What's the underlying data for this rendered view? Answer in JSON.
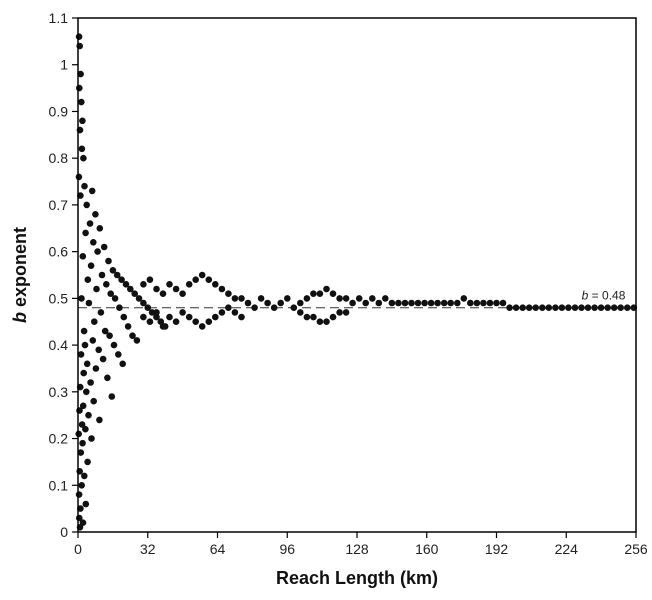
{
  "chart_data": {
    "type": "scatter",
    "title": "",
    "xlabel": "Reach Length (km)",
    "ylabel_bold_italic": "b",
    "ylabel_rest": " exponent",
    "xlim": [
      0,
      256
    ],
    "ylim": [
      0,
      1.1
    ],
    "xticks": [
      0,
      32,
      64,
      96,
      128,
      160,
      192,
      224,
      256
    ],
    "yticks": [
      0,
      0.1,
      0.2,
      0.3,
      0.4,
      0.5,
      0.6,
      0.7,
      0.8,
      0.9,
      1,
      1.1
    ],
    "ytick_labels": [
      "0",
      "0.1",
      "0.2",
      "0.3",
      "0.4",
      "0.5",
      "0.6",
      "0.7",
      "0.8",
      "0.9",
      "1",
      "1.1"
    ],
    "grid": false,
    "legend": "none",
    "colors": {
      "points": "#111111",
      "reference_line": "#333333",
      "axes": "#000000"
    },
    "reference_line": {
      "y": 0.48,
      "style": "dashed"
    },
    "annotation": {
      "label_italic": "b",
      "label_rest": " = 0.48",
      "x": 243,
      "y": 0.48
    },
    "series": [
      {
        "points": [
          [
            0.5,
            1.06
          ],
          [
            0.8,
            1.04
          ],
          [
            1.2,
            0.98
          ],
          [
            0.6,
            0.95
          ],
          [
            1.5,
            0.92
          ],
          [
            2.0,
            0.88
          ],
          [
            0.9,
            0.86
          ],
          [
            1.8,
            0.82
          ],
          [
            2.5,
            0.8
          ],
          [
            0.4,
            0.76
          ],
          [
            3.0,
            0.74
          ],
          [
            1.1,
            0.72
          ],
          [
            6.5,
            0.73
          ],
          [
            4.0,
            0.7
          ],
          [
            8.0,
            0.68
          ],
          [
            5.5,
            0.66
          ],
          [
            10.0,
            0.65
          ],
          [
            3.5,
            0.64
          ],
          [
            7.0,
            0.62
          ],
          [
            12.0,
            0.61
          ],
          [
            9.0,
            0.6
          ],
          [
            2.2,
            0.59
          ],
          [
            14.0,
            0.58
          ],
          [
            6.0,
            0.57
          ],
          [
            16.0,
            0.56
          ],
          [
            11.0,
            0.55
          ],
          [
            18.0,
            0.55
          ],
          [
            4.5,
            0.54
          ],
          [
            20.0,
            0.54
          ],
          [
            13.0,
            0.53
          ],
          [
            22.0,
            0.53
          ],
          [
            8.5,
            0.52
          ],
          [
            24.0,
            0.52
          ],
          [
            15.0,
            0.51
          ],
          [
            26.0,
            0.51
          ],
          [
            1.6,
            0.5
          ],
          [
            28.0,
            0.5
          ],
          [
            17.0,
            0.5
          ],
          [
            30.0,
            0.49
          ],
          [
            5.0,
            0.49
          ],
          [
            32.0,
            0.48
          ],
          [
            19.0,
            0.48
          ],
          [
            34.0,
            0.47
          ],
          [
            10.5,
            0.47
          ],
          [
            36.0,
            0.46
          ],
          [
            21.0,
            0.46
          ],
          [
            38.0,
            0.45
          ],
          [
            7.5,
            0.45
          ],
          [
            40.0,
            0.44
          ],
          [
            23.0,
            0.44
          ],
          [
            12.5,
            0.43
          ],
          [
            2.8,
            0.43
          ],
          [
            25.0,
            0.42
          ],
          [
            14.5,
            0.42
          ],
          [
            6.8,
            0.41
          ],
          [
            27.0,
            0.41
          ],
          [
            3.2,
            0.4
          ],
          [
            16.5,
            0.4
          ],
          [
            9.5,
            0.39
          ],
          [
            18.5,
            0.38
          ],
          [
            1.4,
            0.38
          ],
          [
            11.5,
            0.37
          ],
          [
            4.2,
            0.36
          ],
          [
            20.5,
            0.36
          ],
          [
            8.2,
            0.35
          ],
          [
            2.6,
            0.34
          ],
          [
            13.5,
            0.33
          ],
          [
            5.8,
            0.32
          ],
          [
            1.0,
            0.31
          ],
          [
            3.8,
            0.3
          ],
          [
            15.5,
            0.29
          ],
          [
            7.2,
            0.28
          ],
          [
            2.4,
            0.27
          ],
          [
            0.7,
            0.26
          ],
          [
            4.8,
            0.25
          ],
          [
            9.8,
            0.24
          ],
          [
            1.9,
            0.23
          ],
          [
            3.4,
            0.22
          ],
          [
            0.3,
            0.21
          ],
          [
            6.2,
            0.2
          ],
          [
            2.1,
            0.19
          ],
          [
            1.3,
            0.17
          ],
          [
            4.4,
            0.15
          ],
          [
            0.8,
            0.13
          ],
          [
            2.9,
            0.12
          ],
          [
            1.7,
            0.1
          ],
          [
            0.5,
            0.08
          ],
          [
            3.6,
            0.06
          ],
          [
            1.1,
            0.05
          ],
          [
            0.6,
            0.03
          ],
          [
            2.3,
            0.02
          ],
          [
            0.9,
            0.01
          ],
          [
            30.0,
            0.53
          ],
          [
            33.0,
            0.54
          ],
          [
            36.0,
            0.52
          ],
          [
            39.0,
            0.51
          ],
          [
            42.0,
            0.53
          ],
          [
            45.0,
            0.52
          ],
          [
            48.0,
            0.51
          ],
          [
            51.0,
            0.53
          ],
          [
            54.0,
            0.54
          ],
          [
            57.0,
            0.55
          ],
          [
            60.0,
            0.54
          ],
          [
            63.0,
            0.53
          ],
          [
            66.0,
            0.52
          ],
          [
            69.0,
            0.51
          ],
          [
            72.0,
            0.5
          ],
          [
            75.0,
            0.5
          ],
          [
            30.0,
            0.46
          ],
          [
            33.0,
            0.45
          ],
          [
            36.0,
            0.47
          ],
          [
            39.0,
            0.44
          ],
          [
            42.0,
            0.46
          ],
          [
            45.0,
            0.45
          ],
          [
            48.0,
            0.47
          ],
          [
            51.0,
            0.46
          ],
          [
            54.0,
            0.45
          ],
          [
            57.0,
            0.44
          ],
          [
            60.0,
            0.45
          ],
          [
            63.0,
            0.46
          ],
          [
            66.0,
            0.47
          ],
          [
            69.0,
            0.48
          ],
          [
            72.0,
            0.47
          ],
          [
            75.0,
            0.46
          ],
          [
            78.0,
            0.49
          ],
          [
            81.0,
            0.48
          ],
          [
            84.0,
            0.5
          ],
          [
            87.0,
            0.49
          ],
          [
            90.0,
            0.48
          ],
          [
            93.0,
            0.49
          ],
          [
            96.0,
            0.5
          ],
          [
            99.0,
            0.48
          ],
          [
            102.0,
            0.49
          ],
          [
            105.0,
            0.5
          ],
          [
            108.0,
            0.51
          ],
          [
            111.0,
            0.51
          ],
          [
            114.0,
            0.52
          ],
          [
            117.0,
            0.51
          ],
          [
            120.0,
            0.5
          ],
          [
            123.0,
            0.5
          ],
          [
            102.0,
            0.47
          ],
          [
            105.0,
            0.46
          ],
          [
            108.0,
            0.46
          ],
          [
            111.0,
            0.45
          ],
          [
            114.0,
            0.45
          ],
          [
            117.0,
            0.46
          ],
          [
            120.0,
            0.47
          ],
          [
            123.0,
            0.47
          ],
          [
            126.0,
            0.49
          ],
          [
            129.0,
            0.5
          ],
          [
            132.0,
            0.49
          ],
          [
            135.0,
            0.5
          ],
          [
            138.0,
            0.49
          ],
          [
            141.0,
            0.5
          ],
          [
            144.0,
            0.49
          ],
          [
            147.0,
            0.49
          ],
          [
            150.0,
            0.49
          ],
          [
            153.0,
            0.49
          ],
          [
            156.0,
            0.49
          ],
          [
            159.0,
            0.49
          ],
          [
            162.0,
            0.49
          ],
          [
            165.0,
            0.49
          ],
          [
            168.0,
            0.49
          ],
          [
            171.0,
            0.49
          ],
          [
            174.0,
            0.49
          ],
          [
            177.0,
            0.5
          ],
          [
            180.0,
            0.49
          ],
          [
            183.0,
            0.49
          ],
          [
            186.0,
            0.49
          ],
          [
            189.0,
            0.49
          ],
          [
            192.0,
            0.49
          ],
          [
            195.0,
            0.49
          ],
          [
            198.0,
            0.48
          ],
          [
            201.0,
            0.48
          ],
          [
            204.0,
            0.48
          ],
          [
            207.0,
            0.48
          ],
          [
            210.0,
            0.48
          ],
          [
            213.0,
            0.48
          ],
          [
            216.0,
            0.48
          ],
          [
            219.0,
            0.48
          ],
          [
            222.0,
            0.48
          ],
          [
            225.0,
            0.48
          ],
          [
            228.0,
            0.48
          ],
          [
            231.0,
            0.48
          ],
          [
            234.0,
            0.48
          ],
          [
            237.0,
            0.48
          ],
          [
            240.0,
            0.48
          ],
          [
            243.0,
            0.48
          ],
          [
            246.0,
            0.48
          ],
          [
            249.0,
            0.48
          ],
          [
            252.0,
            0.48
          ],
          [
            255.0,
            0.48
          ]
        ]
      }
    ]
  }
}
